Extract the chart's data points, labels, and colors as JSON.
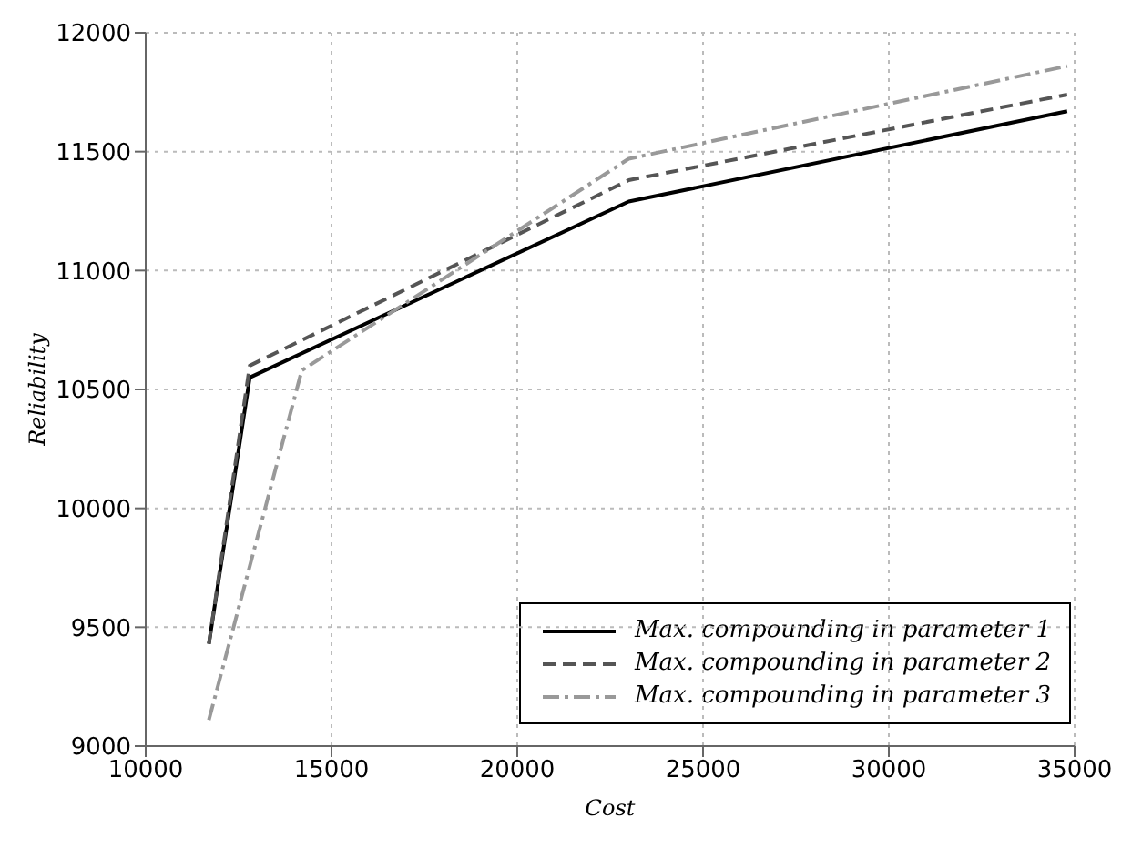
{
  "chart_data": {
    "type": "line",
    "xlabel": "Cost",
    "ylabel": "Reliability",
    "xlim": [
      10000,
      35000
    ],
    "xticks": [
      10000,
      15000,
      20000,
      25000,
      30000,
      35000
    ],
    "ylim": [
      9000,
      12000
    ],
    "yticks": [
      9000,
      9500,
      10000,
      10500,
      11000,
      11500,
      12000
    ],
    "grid": true,
    "legend": "bottom right",
    "marker": "none",
    "series": [
      {
        "name": "Max. compounding in parameter 1",
        "color": "#000000",
        "line_style": "solid",
        "x": [
          11700,
          12800,
          23000,
          34800
        ],
        "values": [
          9430,
          10550,
          11290,
          11670
        ]
      },
      {
        "name": "Max. compounding in parameter 2",
        "color": "#555555",
        "line_style": "dashed",
        "x": [
          11700,
          12800,
          23000,
          34800
        ],
        "values": [
          9430,
          10600,
          11380,
          11740
        ]
      },
      {
        "name": "Max. compounding in parameter 3",
        "color": "#999999",
        "line_style": "dashdot",
        "x": [
          11700,
          14200,
          23000,
          34800
        ],
        "values": [
          9110,
          10580,
          11470,
          11860
        ]
      }
    ]
  }
}
